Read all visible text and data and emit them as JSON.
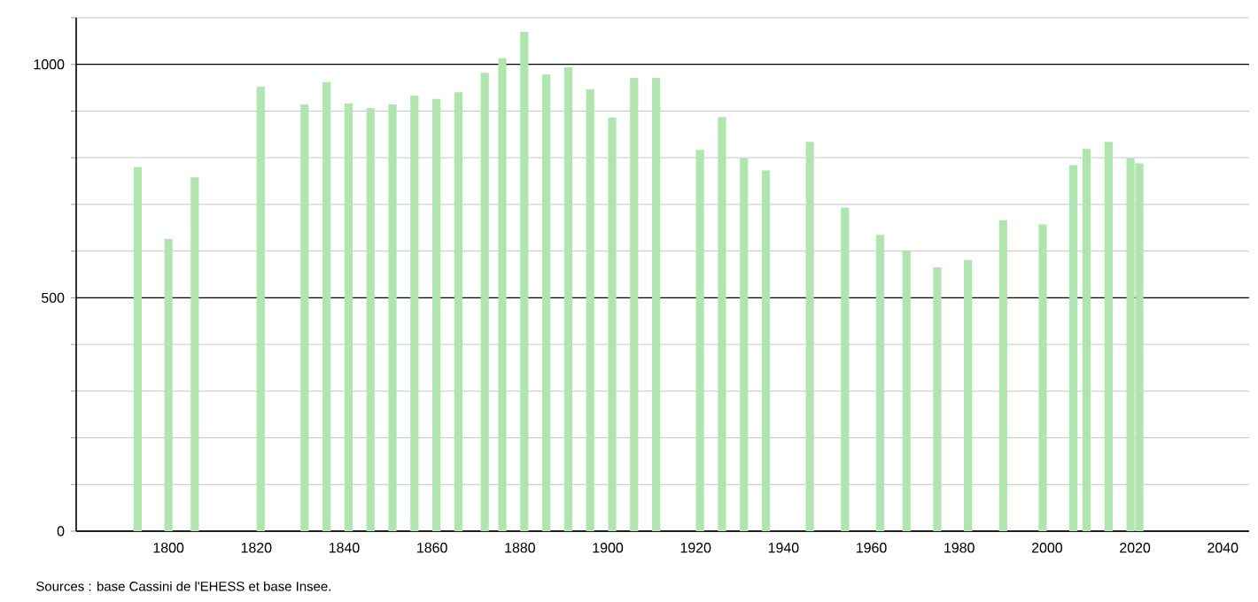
{
  "chart_data": {
    "type": "bar",
    "x": [
      1793,
      1800,
      1806,
      1821,
      1831,
      1836,
      1841,
      1846,
      1851,
      1856,
      1861,
      1866,
      1872,
      1876,
      1881,
      1886,
      1891,
      1896,
      1901,
      1906,
      1911,
      1921,
      1926,
      1931,
      1936,
      1946,
      1954,
      1962,
      1968,
      1975,
      1982,
      1990,
      1999,
      2006,
      2009,
      2014,
      2019,
      2021
    ],
    "values": [
      780,
      626,
      758,
      952,
      914,
      962,
      916,
      906,
      914,
      933,
      926,
      940,
      982,
      1013,
      1070,
      978,
      994,
      947,
      886,
      971,
      971,
      817,
      887,
      799,
      773,
      834,
      693,
      635,
      600,
      565,
      581,
      666,
      657,
      784,
      819,
      834,
      799,
      788
    ],
    "color": "#b0e5b0",
    "xlim": [
      1779,
      2046
    ],
    "ylim": [
      0,
      1100
    ],
    "xticks": [
      1800,
      1820,
      1840,
      1860,
      1880,
      1900,
      1920,
      1940,
      1960,
      1980,
      2000,
      2020,
      2040
    ],
    "yticks": [
      0,
      {
        "value": 100,
        "label": null
      },
      {
        "value": 200,
        "label": null
      },
      {
        "value": 300,
        "label": null
      },
      {
        "value": 400,
        "label": null
      },
      500,
      {
        "value": 600,
        "label": null
      },
      {
        "value": 700,
        "label": null
      },
      {
        "value": 800,
        "label": null
      },
      {
        "value": 900,
        "label": null
      },
      1000,
      {
        "value": 1100,
        "label": null
      }
    ],
    "grid": "y",
    "annotations": [
      "Sources : base Cassini de l'EHESS et base Insee."
    ]
  }
}
